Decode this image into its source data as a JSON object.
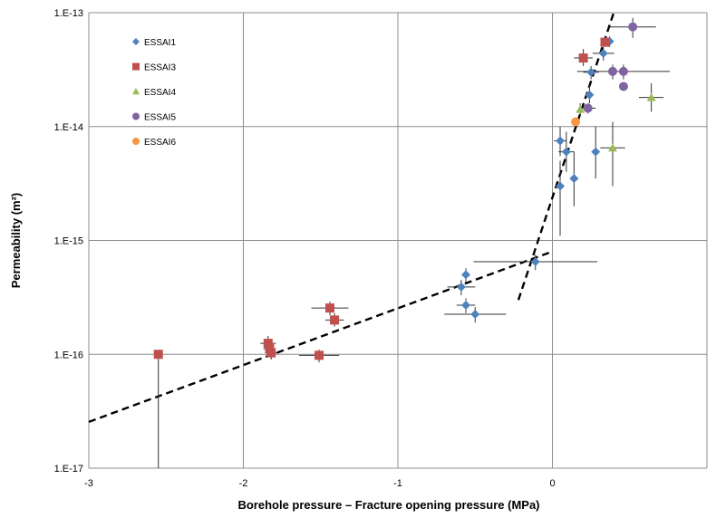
{
  "chart_data": {
    "type": "scatter",
    "xlabel": "Borehole pressure – Fracture opening pressure (MPa)",
    "ylabel": "Permeability (m²)",
    "xlim": [
      -3,
      1
    ],
    "ylim": [
      1e-17,
      1e-13
    ],
    "y_scale": "log",
    "grid": true,
    "legend_position": "top-left",
    "x_ticks": [
      "-3",
      "-2",
      "-1",
      "0"
    ],
    "x_tick_values": [
      -3,
      -2,
      -1,
      0
    ],
    "y_ticks": [
      "1.E-17",
      "1.E-16",
      "1.E-15",
      "1.E-14",
      "1.E-13"
    ],
    "y_tick_values": [
      1e-17,
      1e-16,
      1e-15,
      1e-14,
      1e-13
    ],
    "series": [
      {
        "name": "ESSAI1",
        "marker": "diamond",
        "color": "#4f81bd",
        "points": [
          {
            "x": 0.37,
            "y": 5.6e-14,
            "xerr": 0,
            "ylo": 5e-14,
            "yhi": 6.2e-14
          },
          {
            "x": 0.33,
            "y": 4.4e-14,
            "xerr": 0.07,
            "ylo": 3.8e-14,
            "yhi": 5e-14
          },
          {
            "x": 0.25,
            "y": 3e-14,
            "xerr": 0.05,
            "ylo": 2.6e-14,
            "yhi": 3.4e-14
          },
          {
            "x": 0.24,
            "y": 1.9e-14,
            "xerr": 0,
            "ylo": 1.6e-14,
            "yhi": 2.3e-14
          },
          {
            "x": 0.05,
            "y": 7.5e-15,
            "xerr": 0.04,
            "ylo": 5.5e-15,
            "yhi": 1e-14
          },
          {
            "x": 0.09,
            "y": 6e-15,
            "xerr": 0.05,
            "ylo": 4e-15,
            "yhi": 9e-15
          },
          {
            "x": 0.28,
            "y": 6e-15,
            "xerr": 0,
            "ylo": 3.5e-15,
            "yhi": 1e-14
          },
          {
            "x": 0.14,
            "y": 3.5e-15,
            "xerr": 0,
            "ylo": 2e-15,
            "yhi": 6e-15
          },
          {
            "x": 0.05,
            "y": 3e-15,
            "xerr": 0,
            "ylo": 1.1e-15,
            "yhi": 5e-15
          },
          {
            "x": -0.11,
            "y": 6.5e-16,
            "xerr": 0.4,
            "ylo": 5.5e-16,
            "yhi": 7.5e-16
          },
          {
            "x": -0.56,
            "y": 5e-16,
            "xerr": 0,
            "ylo": 4.3e-16,
            "yhi": 5.7e-16
          },
          {
            "x": -0.59,
            "y": 3.9e-16,
            "xerr": 0.09,
            "ylo": 3.3e-16,
            "yhi": 4.5e-16
          },
          {
            "x": -0.56,
            "y": 2.7e-16,
            "xerr": 0.06,
            "ylo": 2.3e-16,
            "yhi": 3.1e-16
          },
          {
            "x": -0.5,
            "y": 2.25e-16,
            "xerr": 0.2,
            "ylo": 1.9e-16,
            "yhi": 2.6e-16
          }
        ]
      },
      {
        "name": "ESSAI3",
        "marker": "square",
        "color": "#c0504d",
        "points": [
          {
            "x": 0.34,
            "y": 5.5e-14,
            "xerr": 0,
            "ylo": 5.5e-14,
            "yhi": 5.5e-14
          },
          {
            "x": 0.2,
            "y": 4e-14,
            "xerr": 0.06,
            "ylo": 3.4e-14,
            "yhi": 4.8e-14
          },
          {
            "x": -1.44,
            "y": 2.55e-16,
            "xerr": 0.12,
            "ylo": 2.2e-16,
            "yhi": 2.9e-16
          },
          {
            "x": -1.41,
            "y": 2e-16,
            "xerr": 0.06,
            "ylo": 1.75e-16,
            "yhi": 2.3e-16
          },
          {
            "x": -1.84,
            "y": 1.25e-16,
            "xerr": 0.05,
            "ylo": 1.1e-16,
            "yhi": 1.45e-16
          },
          {
            "x": -1.83,
            "y": 1.12e-16,
            "xerr": 0.04,
            "ylo": 1e-16,
            "yhi": 1.25e-16
          },
          {
            "x": -1.82,
            "y": 1.03e-16,
            "xerr": 0.04,
            "ylo": 9e-17,
            "yhi": 1.15e-16
          },
          {
            "x": -1.51,
            "y": 9.8e-17,
            "xerr": 0.13,
            "ylo": 8.5e-17,
            "yhi": 1.1e-16
          },
          {
            "x": -2.55,
            "y": 1e-16,
            "xerr": 0,
            "ylo": 1e-17,
            "yhi": 1e-16
          }
        ]
      },
      {
        "name": "ESSAI4",
        "marker": "triangle",
        "color": "#9bbb59",
        "points": [
          {
            "x": 0.64,
            "y": 1.8e-14,
            "xerr": 0.08,
            "ylo": 1.35e-14,
            "yhi": 2.4e-14
          },
          {
            "x": 0.18,
            "y": 1.42e-14,
            "xerr": 0,
            "ylo": 1.25e-14,
            "yhi": 1.6e-14
          },
          {
            "x": 0.39,
            "y": 6.5e-15,
            "xerr": 0.08,
            "ylo": 3e-15,
            "yhi": 1.1e-14
          }
        ]
      },
      {
        "name": "ESSAI5",
        "marker": "circle",
        "color": "#8064a2",
        "points": [
          {
            "x": 0.52,
            "y": 7.5e-14,
            "xerr": 0.15,
            "ylo": 6e-14,
            "yhi": 9e-14
          },
          {
            "x": 0.39,
            "y": 3.05e-14,
            "xerr": 0,
            "ylo": 2.6e-14,
            "yhi": 3.5e-14
          },
          {
            "x": 0.46,
            "y": 3.05e-14,
            "xerr": 0.3,
            "ylo": 2.6e-14,
            "yhi": 3.5e-14
          },
          {
            "x": 0.46,
            "y": 2.25e-14,
            "xerr": 0,
            "ylo": 2.25e-14,
            "yhi": 2.25e-14
          },
          {
            "x": 0.23,
            "y": 1.45e-14,
            "xerr": 0.05,
            "ylo": 1.3e-14,
            "yhi": 1.6e-14
          }
        ]
      },
      {
        "name": "ESSAI6",
        "marker": "circle",
        "color": "#f79646",
        "points": [
          {
            "x": 0.15,
            "y": 1.1e-14,
            "xerr": 0,
            "ylo": 1.1e-14,
            "yhi": 1.1e-14
          }
        ]
      }
    ],
    "fit_lines": [
      {
        "style": "dashed",
        "color": "#000000",
        "points": [
          [
            -3,
            2.55e-17
          ],
          [
            0,
            8e-16
          ]
        ]
      },
      {
        "style": "dashed",
        "color": "#000000",
        "points": [
          [
            -0.22,
            3e-16
          ],
          [
            0.4,
            1.03e-13
          ]
        ]
      }
    ]
  }
}
